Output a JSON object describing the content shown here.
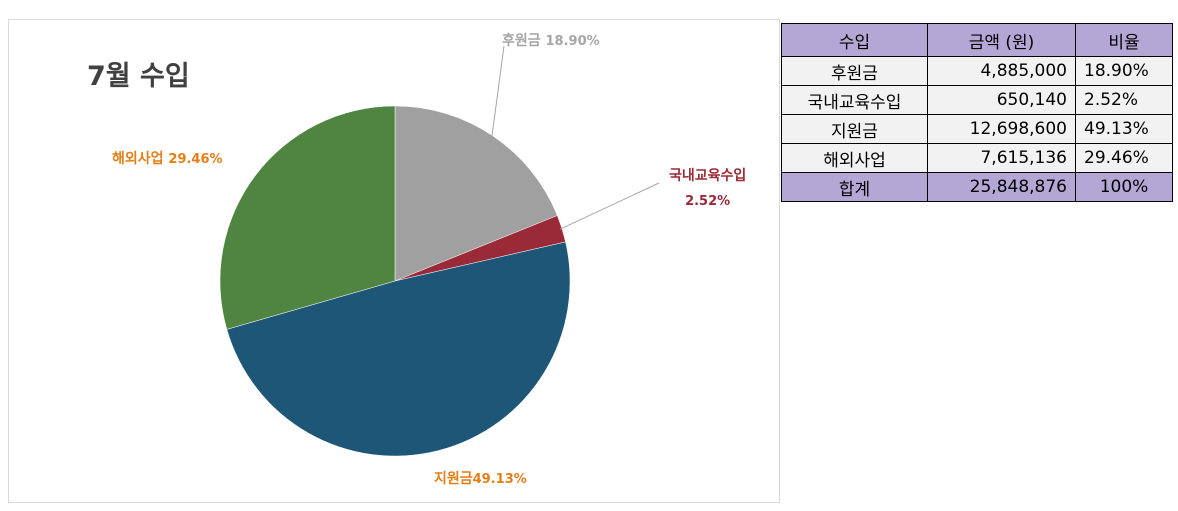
{
  "chart_data": {
    "type": "pie",
    "title": "7월 수입",
    "start_angle_deg": 0,
    "direction": "clockwise",
    "slices": [
      {
        "name": "후원금",
        "value": 18.9,
        "label": "18.90%",
        "color": "#a0a0a0",
        "label_color": "#a6a6a6"
      },
      {
        "name": "국내교육수입",
        "value": 2.52,
        "label": "2.52%",
        "color": "#9b2a38",
        "label_color": "#9b2a38"
      },
      {
        "name": "지원금",
        "value": 49.13,
        "label": "49.13%",
        "color": "#1e5678",
        "label_color": "#e47e16"
      },
      {
        "name": "해외사업",
        "value": 29.46,
        "label": "29.46%",
        "color": "#4f8540",
        "label_color": "#e47e16"
      }
    ]
  },
  "table": {
    "headers": [
      "수입",
      "금액 (원)",
      "비율"
    ],
    "rows": [
      {
        "name": "후원금",
        "amount": "4,885,000",
        "ratio": "18.90%"
      },
      {
        "name": "국내교육수입",
        "amount": "650,140",
        "ratio": "2.52%"
      },
      {
        "name": "지원금",
        "amount": "12,698,600",
        "ratio": "49.13%"
      },
      {
        "name": "해외사업",
        "amount": "7,615,136",
        "ratio": "29.46%"
      }
    ],
    "total": {
      "name": "합계",
      "amount": "25,848,876",
      "ratio": "100%"
    },
    "header_color": "#b4a7d6",
    "body_color": "#f2f2f2"
  }
}
